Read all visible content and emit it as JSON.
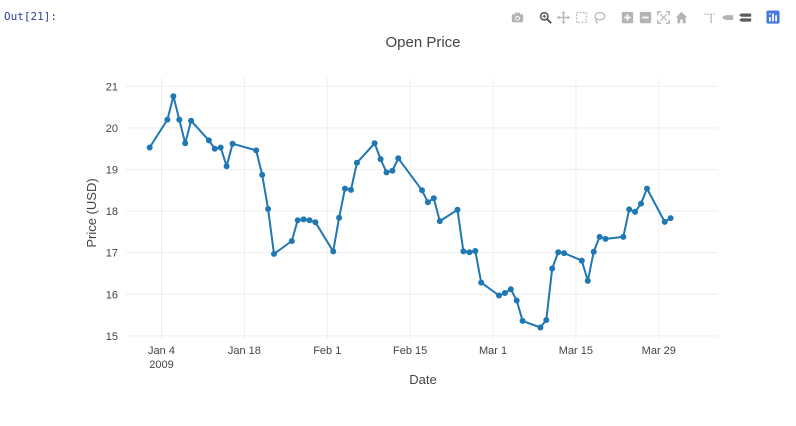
{
  "cell": {
    "out_prompt": "Out[21]:"
  },
  "modebar": {
    "buttons": [
      {
        "name": "camera-icon",
        "title": "Download plot as a png"
      },
      {
        "name": "zoom-icon",
        "title": "Zoom"
      },
      {
        "name": "pan-icon",
        "title": "Pan"
      },
      {
        "name": "box-select-icon",
        "title": "Box Select"
      },
      {
        "name": "lasso-select-icon",
        "title": "Lasso Select"
      },
      {
        "name": "zoom-in-icon",
        "title": "Zoom in"
      },
      {
        "name": "zoom-out-icon",
        "title": "Zoom out"
      },
      {
        "name": "autoscale-icon",
        "title": "Autoscale"
      },
      {
        "name": "home-icon",
        "title": "Reset axes"
      },
      {
        "name": "spike-lines-icon",
        "title": "Toggle Spike Lines"
      },
      {
        "name": "hover-closest-icon",
        "title": "Show closest data on hover"
      },
      {
        "name": "hover-compare-icon",
        "title": "Compare data on hover"
      },
      {
        "name": "plotly-logo-icon",
        "title": "Produced with Plotly"
      }
    ],
    "colors": {
      "inactive": "#b4b4b4",
      "active": "#5a5a5a",
      "logo": "#447adb"
    }
  },
  "chart_data": {
    "type": "line",
    "title": "Open Price",
    "xlabel": "Date",
    "ylabel": "Price (USD)",
    "ylim": [
      14.9,
      21.2
    ],
    "xlim": [
      "2008-12-29",
      "2009-04-08"
    ],
    "grid": true,
    "line_color": "#1f77b4",
    "x_ticks": [
      {
        "date": "2009-01-04",
        "label": "Jan 4",
        "sublabel": "2009"
      },
      {
        "date": "2009-01-18",
        "label": "Jan 18",
        "sublabel": ""
      },
      {
        "date": "2009-02-01",
        "label": "Feb 1",
        "sublabel": ""
      },
      {
        "date": "2009-02-15",
        "label": "Feb 15",
        "sublabel": ""
      },
      {
        "date": "2009-03-01",
        "label": "Mar 1",
        "sublabel": ""
      },
      {
        "date": "2009-03-15",
        "label": "Mar 15",
        "sublabel": ""
      },
      {
        "date": "2009-03-29",
        "label": "Mar 29",
        "sublabel": ""
      }
    ],
    "y_ticks": [
      15,
      16,
      17,
      18,
      19,
      20,
      21
    ],
    "series": [
      {
        "x": [
          "2009-01-02",
          "2009-01-05",
          "2009-01-06",
          "2009-01-07",
          "2009-01-08",
          "2009-01-09",
          "2009-01-12",
          "2009-01-13",
          "2009-01-14",
          "2009-01-15",
          "2009-01-16",
          "2009-01-20",
          "2009-01-21",
          "2009-01-22",
          "2009-01-23",
          "2009-01-26",
          "2009-01-27",
          "2009-01-28",
          "2009-01-29",
          "2009-01-30",
          "2009-02-02",
          "2009-02-03",
          "2009-02-04",
          "2009-02-05",
          "2009-02-06",
          "2009-02-09",
          "2009-02-10",
          "2009-02-11",
          "2009-02-12",
          "2009-02-13",
          "2009-02-17",
          "2009-02-18",
          "2009-02-19",
          "2009-02-20",
          "2009-02-23",
          "2009-02-24",
          "2009-02-25",
          "2009-02-26",
          "2009-02-27",
          "2009-03-02",
          "2009-03-03",
          "2009-03-04",
          "2009-03-05",
          "2009-03-06",
          "2009-03-09",
          "2009-03-10",
          "2009-03-11",
          "2009-03-12",
          "2009-03-13",
          "2009-03-16",
          "2009-03-17",
          "2009-03-18",
          "2009-03-19",
          "2009-03-20",
          "2009-03-23",
          "2009-03-24",
          "2009-03-25",
          "2009-03-26",
          "2009-03-27",
          "2009-03-30",
          "2009-03-31"
        ],
        "y": [
          19.53,
          20.2,
          20.76,
          20.2,
          19.63,
          20.17,
          19.7,
          19.5,
          19.53,
          19.08,
          19.62,
          19.46,
          18.87,
          18.05,
          16.97,
          17.28,
          17.78,
          17.8,
          17.78,
          17.73,
          17.03,
          17.84,
          18.54,
          18.51,
          19.16,
          19.63,
          19.25,
          18.93,
          18.97,
          19.27,
          18.5,
          18.21,
          18.31,
          17.76,
          18.03,
          17.03,
          17.01,
          17.04,
          16.28,
          15.97,
          16.03,
          16.12,
          15.85,
          15.36,
          15.2,
          15.38,
          16.62,
          17.01,
          16.99,
          16.81,
          16.32,
          17.02,
          17.38,
          17.33,
          17.38,
          18.04,
          17.98,
          18.18,
          18.54,
          17.74,
          17.83
        ]
      }
    ]
  }
}
